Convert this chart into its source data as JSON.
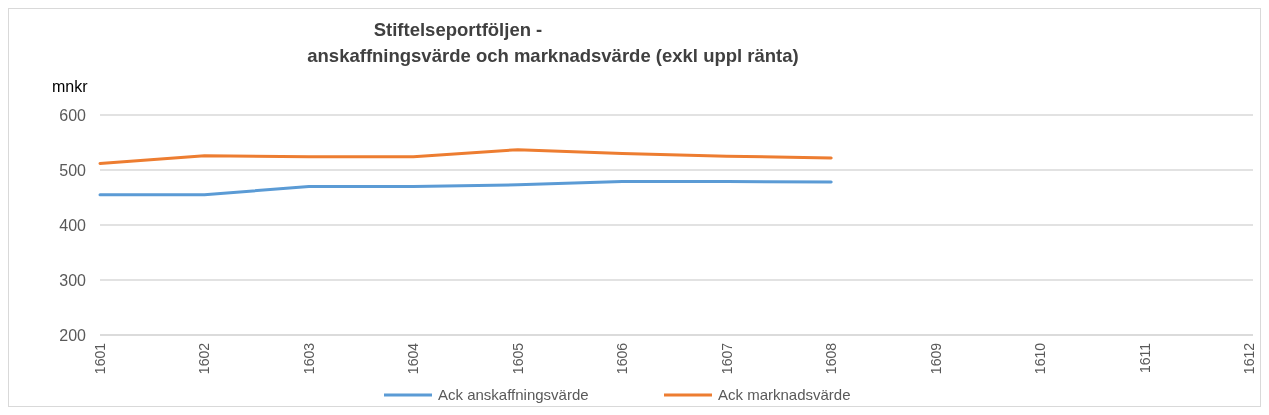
{
  "chart_data": {
    "type": "line",
    "title": "Stiftelseportföljen -\nanskaffningsvärde och marknadsvärde (exkl uppl ränta)",
    "ylabel": "mnkr",
    "categories": [
      "1601",
      "1602",
      "1603",
      "1604",
      "1605",
      "1606",
      "1607",
      "1608",
      "1609",
      "1610",
      "1611",
      "1612"
    ],
    "series": [
      {
        "name": "Ack anskaffningsvärde",
        "color": "#5b9bd5",
        "values": [
          455,
          455,
          470,
          470,
          473,
          479,
          479,
          478,
          null,
          null,
          null,
          null
        ]
      },
      {
        "name": "Ack marknadsvärde",
        "color": "#ed7d31",
        "values": [
          512,
          526,
          524,
          524,
          537,
          530,
          525,
          522,
          null,
          null,
          null,
          null
        ]
      }
    ],
    "ylim": [
      200,
      600
    ],
    "yticks": [
      200,
      300,
      400,
      500,
      600
    ],
    "grid": "y",
    "legend": "bottom",
    "marker": "none",
    "line_style": "solid"
  }
}
